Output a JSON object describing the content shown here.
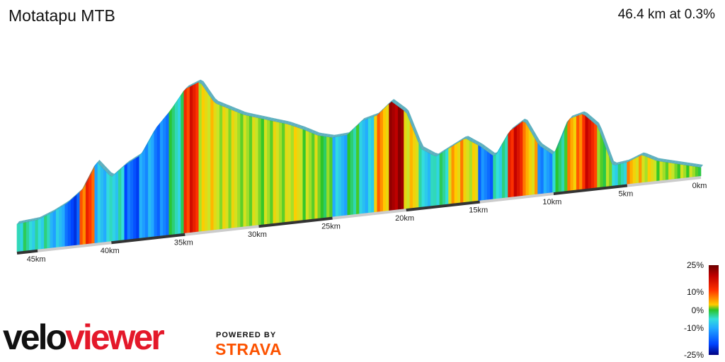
{
  "header": {
    "title": "Motatapu MTB",
    "summary": "46.4 km at 0.3%"
  },
  "legend": {
    "labels": [
      "25%",
      "10%",
      "0%",
      "-10%",
      "-25%"
    ],
    "values": [
      25,
      10,
      0,
      -10,
      -25
    ]
  },
  "branding": {
    "logo_main": "velo",
    "logo_accent": "viewer",
    "powered_by": "POWERED BY",
    "strava": "STRAVA"
  },
  "colors": {
    "flat": "#29c429",
    "steep_up": "#c00000",
    "steep_down": "#0a2dd6",
    "axis_dark": "#333333",
    "axis_light": "#cccccc"
  },
  "chart_data": {
    "type": "area",
    "title": "Motatapu MTB",
    "xlabel": "",
    "ylabel": "",
    "x_unit": "km",
    "x_direction": "reversed",
    "xlim": [
      0,
      46.4
    ],
    "distance_ticks": [
      0,
      5,
      10,
      15,
      20,
      25,
      30,
      35,
      40,
      45
    ],
    "tick_labels": [
      "0km",
      "5km",
      "10km",
      "15km",
      "20km",
      "25km",
      "30km",
      "35km",
      "40km",
      "45km"
    ],
    "distance_km": [
      0,
      1,
      2,
      3,
      4,
      5,
      6,
      7,
      8,
      9,
      10,
      11,
      12,
      13,
      14,
      15,
      16,
      17,
      18,
      19,
      20,
      21,
      22,
      23,
      24,
      25,
      26,
      27,
      28,
      29,
      30,
      31,
      32,
      33,
      34,
      35,
      36,
      37,
      38,
      39,
      40,
      41,
      42,
      43,
      44,
      45,
      46.4
    ],
    "relative_elevation": [
      0,
      4,
      8,
      12,
      20,
      14,
      12,
      55,
      70,
      66,
      30,
      42,
      70,
      60,
      35,
      48,
      58,
      50,
      42,
      52,
      92,
      105,
      92,
      88,
      75,
      74,
      78,
      86,
      93,
      98,
      103,
      108,
      116,
      124,
      148,
      142,
      121,
      104,
      78,
      70,
      58,
      76,
      48,
      36,
      28,
      22,
      20
    ],
    "gradient_pct": [
      2,
      3,
      3,
      5,
      8,
      -4,
      1,
      15,
      10,
      -2,
      -12,
      8,
      16,
      -5,
      -14,
      6,
      8,
      -4,
      -6,
      7,
      20,
      9,
      -7,
      -2,
      -8,
      1,
      3,
      5,
      4,
      3,
      3,
      4,
      5,
      6,
      14,
      -3,
      -13,
      -11,
      -16,
      -5,
      -8,
      12,
      -17,
      -8,
      -5,
      -4,
      -1
    ]
  }
}
